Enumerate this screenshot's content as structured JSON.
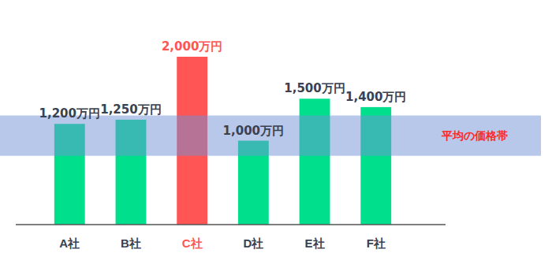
{
  "chart_data": {
    "type": "bar",
    "categories": [
      "A社",
      "B社",
      "C社",
      "D社",
      "E社",
      "F社"
    ],
    "values": [
      1200,
      1250,
      2000,
      1000,
      1500,
      1400
    ],
    "value_labels": [
      "1,200万円",
      "1,250万円",
      "2,000万円",
      "1,000万円",
      "1,500万円",
      "1,400万円"
    ],
    "color": "#00e08c",
    "colors": [
      "#00e08c",
      "#00e08c",
      "#ff5555",
      "#00e08c",
      "#00e08c",
      "#00e08c"
    ],
    "ylim": [
      0,
      2000
    ],
    "data_labels": true,
    "tick_labels": "x",
    "grid": false,
    "band": {
      "label": "平均の価格帯",
      "range": [
        820,
        1300
      ]
    }
  }
}
